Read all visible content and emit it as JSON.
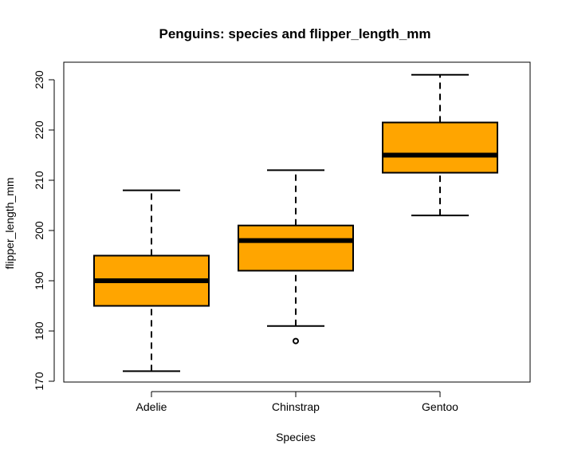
{
  "chart_data": {
    "type": "boxplot",
    "title": "Penguins: species and flipper_length_mm",
    "xlabel": "Species",
    "ylabel": "flipper_length_mm",
    "ylim": [
      169.5,
      232
    ],
    "yticks": [
      170,
      180,
      190,
      200,
      210,
      220,
      230
    ],
    "categories": [
      "Adelie",
      "Chinstrap",
      "Gentoo"
    ],
    "box_color": "#FFA500",
    "boxes": [
      {
        "name": "Adelie",
        "whisker_low": 172,
        "q1": 185,
        "median": 190,
        "q3": 195,
        "whisker_high": 208,
        "outliers": []
      },
      {
        "name": "Chinstrap",
        "whisker_low": 181,
        "q1": 192,
        "median": 198,
        "q3": 201,
        "whisker_high": 212,
        "outliers": [
          178
        ]
      },
      {
        "name": "Gentoo",
        "whisker_low": 203,
        "q1": 211.5,
        "median": 215,
        "q3": 221.5,
        "whisker_high": 231,
        "outliers": []
      }
    ],
    "grid": false,
    "legend": "none"
  }
}
